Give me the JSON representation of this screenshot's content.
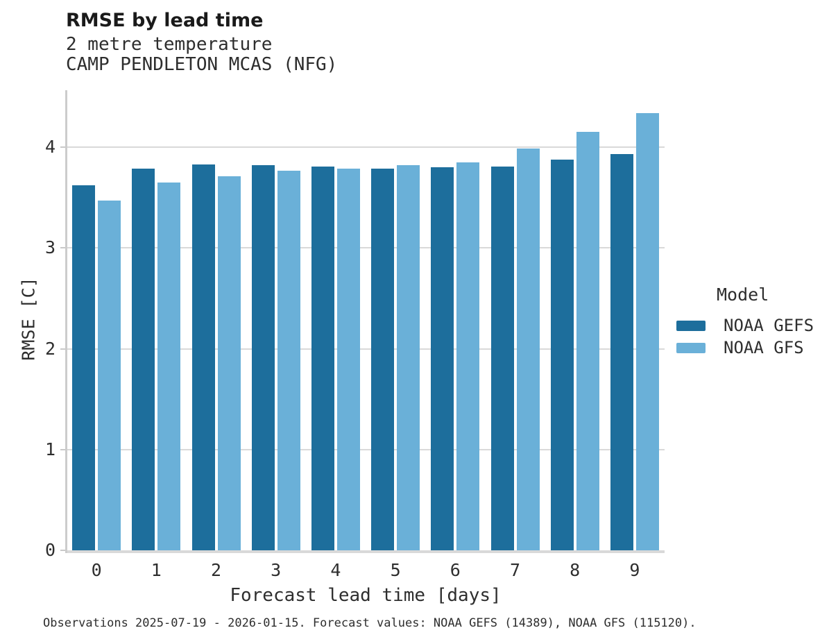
{
  "chart_data": {
    "type": "bar",
    "title": "RMSE by lead time",
    "subtitle": [
      "2 metre temperature",
      "CAMP PENDLETON MCAS (NFG)"
    ],
    "categories": [
      "0",
      "1",
      "2",
      "3",
      "4",
      "5",
      "6",
      "7",
      "8",
      "9"
    ],
    "series": [
      {
        "name": "NOAA GEFS",
        "color": "#1d6e9c",
        "values": [
          3.62,
          3.79,
          3.83,
          3.82,
          3.81,
          3.79,
          3.8,
          3.81,
          3.88,
          3.93
        ]
      },
      {
        "name": "NOAA GFS",
        "color": "#6ab0d8",
        "values": [
          3.47,
          3.65,
          3.71,
          3.77,
          3.79,
          3.82,
          3.85,
          3.99,
          4.15,
          4.34
        ]
      }
    ],
    "xlabel": "Forecast lead time [days]",
    "ylabel": "RMSE [C]",
    "ylim": [
      0,
      4.58
    ],
    "yticks": [
      0,
      1,
      2,
      3,
      4
    ],
    "grid": "horizontal-only",
    "grid_color": "#d9d9d9",
    "legend_title": "Model",
    "legend_position": "right"
  },
  "footer": {
    "caption": "Observations 2025-07-19 - 2026-01-15. Forecast values: NOAA GEFS (14389), NOAA GFS (115120)."
  }
}
